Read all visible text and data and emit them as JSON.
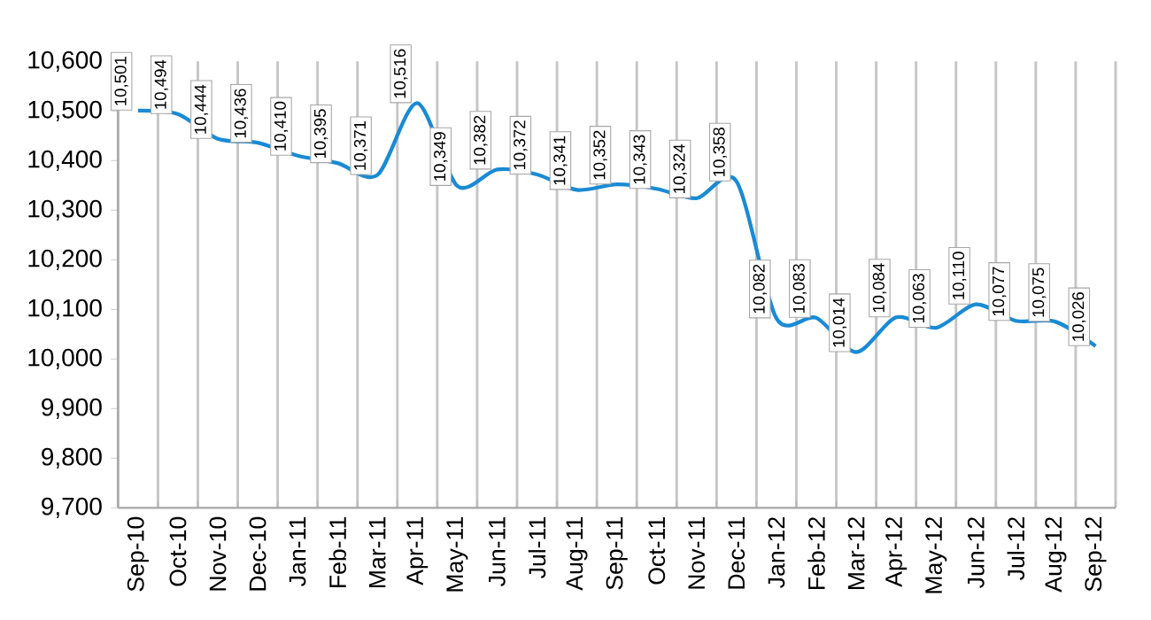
{
  "chart_data": {
    "type": "line",
    "categories": [
      "Sep-10",
      "Oct-10",
      "Nov-10",
      "Dec-10",
      "Jan-11",
      "Feb-11",
      "Mar-11",
      "Apr-11",
      "May-11",
      "Jun-11",
      "Jul-11",
      "Aug-11",
      "Sep-11",
      "Oct-11",
      "Nov-11",
      "Dec-11",
      "Jan-12",
      "Feb-12",
      "Mar-12",
      "Apr-12",
      "May-12",
      "Jun-12",
      "Jul-12",
      "Aug-12",
      "Sep-12"
    ],
    "series": [
      {
        "color": "#1a8ad4",
        "values": [
          10501,
          10494,
          10444,
          10436,
          10410,
          10395,
          10371,
          10516,
          10349,
          10382,
          10372,
          10341,
          10352,
          10343,
          10324,
          10358,
          10082,
          10083,
          10014,
          10084,
          10063,
          10110,
          10077,
          10075,
          10026
        ],
        "value_labels": [
          "10,501",
          "10,494",
          "10,444",
          "10,436",
          "10,410",
          "10,395",
          "10,371",
          "10,516",
          "10,349",
          "10,382",
          "10,372",
          "10,341",
          "10,352",
          "10,343",
          "10,324",
          "10,358",
          "10,082",
          "10,083",
          "10,014",
          "10,084",
          "10,063",
          "10,110",
          "10,077",
          "10,075",
          "10,026"
        ]
      }
    ],
    "ylim": [
      9700,
      10600
    ],
    "yticks": [
      {
        "value": 9700,
        "label": "9,700"
      },
      {
        "value": 9800,
        "label": "9,800"
      },
      {
        "value": 9900,
        "label": "9,900"
      },
      {
        "value": 10000,
        "label": "10,000"
      },
      {
        "value": 10100,
        "label": "10,100"
      },
      {
        "value": 10200,
        "label": "10,200"
      },
      {
        "value": 10300,
        "label": "10,300"
      },
      {
        "value": 10400,
        "label": "10,400"
      },
      {
        "value": 10500,
        "label": "10,500"
      },
      {
        "value": 10600,
        "label": "10,600"
      }
    ],
    "grid": "x",
    "marker": "none",
    "line_style": "solid"
  }
}
